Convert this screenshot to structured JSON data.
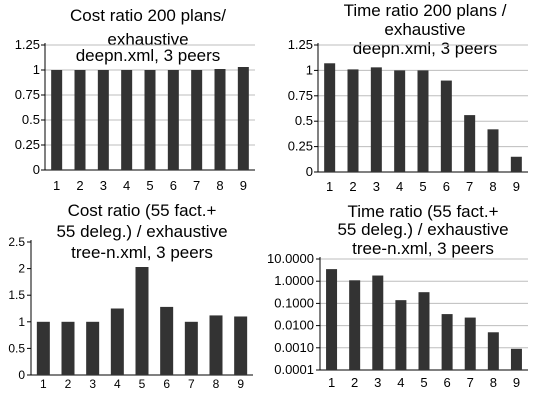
{
  "chart_data": [
    {
      "type": "bar",
      "title": [
        "Cost ratio 200 plans/",
        "exhaustive",
        "deepn.xml, 3 peers"
      ],
      "categories": [
        "1",
        "2",
        "3",
        "4",
        "5",
        "6",
        "7",
        "8",
        "9"
      ],
      "values": [
        1.0,
        1.0,
        1.0,
        1.0,
        1.0,
        1.0,
        1.0,
        1.01,
        1.03
      ],
      "ylim": [
        0,
        1.25
      ],
      "yticks": [
        "0",
        "0.25",
        "0.5",
        "0.75",
        "1",
        "1.25"
      ],
      "grid": true,
      "xlabel": "",
      "ylabel": ""
    },
    {
      "type": "bar",
      "title": [
        "Time ratio 200 plans /",
        "exhaustive",
        "deepn.xml, 3 peers"
      ],
      "categories": [
        "1",
        "2",
        "3",
        "4",
        "5",
        "6",
        "7",
        "8",
        "9"
      ],
      "values": [
        1.07,
        1.01,
        1.03,
        1.0,
        1.0,
        0.9,
        0.56,
        0.42,
        0.15
      ],
      "ylim": [
        0,
        1.25
      ],
      "yticks": [
        "0",
        "0.25",
        "0.5",
        "0.75",
        "1",
        "1.25"
      ],
      "grid": true,
      "xlabel": "",
      "ylabel": ""
    },
    {
      "type": "bar",
      "title": [
        "Cost ratio (55 fact.+",
        "55 deleg.) / exhaustive",
        "tree-n.xml, 3 peers"
      ],
      "categories": [
        "1",
        "2",
        "3",
        "4",
        "5",
        "6",
        "7",
        "8",
        "9"
      ],
      "values": [
        1.0,
        1.0,
        1.0,
        1.25,
        2.03,
        1.28,
        1.0,
        1.12,
        1.1
      ],
      "ylim": [
        0,
        2.5
      ],
      "yticks": [
        "0",
        "0.5",
        "1",
        "1.5",
        "2",
        "2.5"
      ],
      "grid": false,
      "xlabel": "",
      "ylabel": ""
    },
    {
      "type": "bar",
      "scale": "log",
      "title": [
        "Time ratio (55 fact.+",
        "55 deleg.) / exhaustive",
        "tree-n.xml, 3 peers"
      ],
      "categories": [
        "1",
        "2",
        "3",
        "4",
        "5",
        "6",
        "7",
        "8",
        "9"
      ],
      "values": [
        3.5,
        1.1,
        1.8,
        0.14,
        0.32,
        0.033,
        0.023,
        0.005,
        0.0009
      ],
      "ylim": [
        0.0001,
        10
      ],
      "yticks": [
        "0.0001",
        "0.0010",
        "0.0100",
        "0.1000",
        "1.0000",
        "10.0000"
      ],
      "grid": true,
      "xlabel": "",
      "ylabel": ""
    }
  ]
}
